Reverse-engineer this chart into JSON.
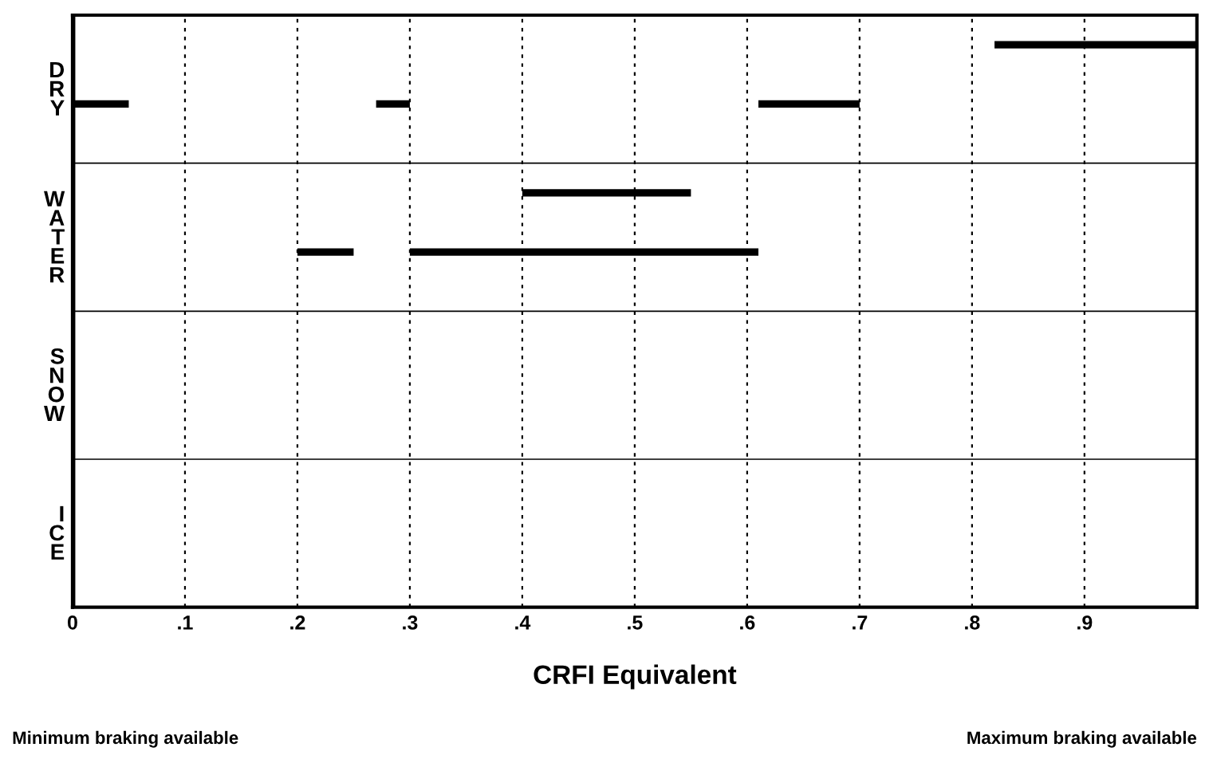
{
  "chart_data": {
    "type": "bar",
    "orientation": "horizontal",
    "xlabel": "CRFI Equivalent",
    "categories": [
      "DRY",
      "WATER",
      "SNOW",
      "ICE"
    ],
    "series": [
      {
        "color": "#000000",
        "values": [
          0.18,
          0.15,
          null,
          null
        ],
        "base": [
          0.82,
          0.4,
          null,
          null
        ]
      },
      {
        "color": "#000000",
        "values": [
          0.05,
          0.05,
          null,
          null
        ],
        "base": [
          0,
          0.2,
          null,
          null
        ]
      },
      {
        "color": "#000000",
        "values": [
          0.03,
          0.31,
          null,
          null
        ],
        "base": [
          0.27,
          0.3,
          null,
          null
        ]
      },
      {
        "color": "#000000",
        "values": [
          0.09,
          null,
          null,
          null
        ],
        "base": [
          0.61,
          null,
          null,
          null
        ]
      }
    ],
    "xlim": [
      0,
      1.0
    ],
    "xticks": [
      0,
      {
        "value": 0.1,
        "label": ".1"
      },
      {
        "value": 0.2,
        "label": ".2"
      },
      {
        "value": 0.3,
        "label": ".3"
      },
      {
        "value": 0.4,
        "label": ".4"
      },
      {
        "value": 0.5,
        "label": ".5"
      },
      {
        "value": 0.6,
        "label": ".6"
      },
      {
        "value": 0.7,
        "label": ".7"
      },
      {
        "value": 0.8,
        "label": ".8"
      },
      {
        "value": 0.9,
        "label": ".9"
      }
    ],
    "grid": "x",
    "annotations": [
      "Minimum braking available",
      "Maximum braking available"
    ]
  }
}
